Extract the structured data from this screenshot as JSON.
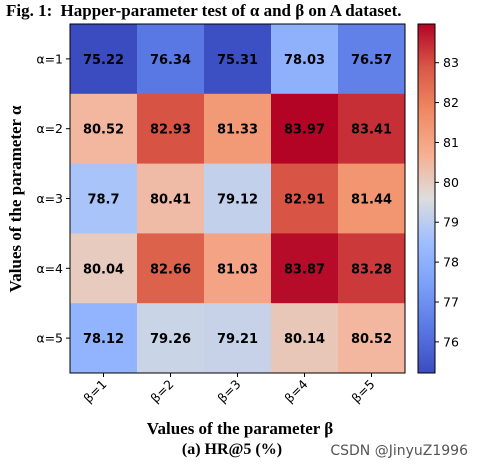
{
  "chart_data": {
    "type": "heatmap",
    "title_prefix": "Fig. 1:",
    "title": "Happer-parameter test of α and β on A dataset.",
    "xlabel": "Values of the parameter β",
    "ylabel": "Values of the parameter α",
    "x_categories": [
      "β=1",
      "β=2",
      "β=3",
      "β=4",
      "β=5"
    ],
    "y_categories": [
      "α=1",
      "α=2",
      "α=3",
      "α=4",
      "α=5"
    ],
    "values": [
      [
        75.22,
        76.34,
        75.31,
        78.03,
        76.57
      ],
      [
        80.52,
        82.93,
        81.33,
        83.97,
        83.41
      ],
      [
        78.7,
        80.41,
        79.12,
        82.91,
        81.44
      ],
      [
        80.04,
        82.66,
        81.03,
        83.87,
        83.28
      ],
      [
        78.12,
        79.26,
        79.21,
        80.14,
        80.52
      ]
    ],
    "value_labels": [
      [
        "75.22",
        "76.34",
        "75.31",
        "78.03",
        "76.57"
      ],
      [
        "80.52",
        "82.93",
        "81.33",
        "83.97",
        "83.41"
      ],
      [
        "78.7",
        "80.41",
        "79.12",
        "82.91",
        "81.44"
      ],
      [
        "80.04",
        "82.66",
        "81.03",
        "83.87",
        "83.28"
      ],
      [
        "78.12",
        "79.26",
        "79.21",
        "80.14",
        "80.52"
      ]
    ],
    "colormap": "coolwarm",
    "vmin": 75.22,
    "vmax": 83.97,
    "colorbar_ticks": [
      76,
      77,
      78,
      79,
      80,
      81,
      82,
      83
    ],
    "caption": "(a) HR@5 (%)"
  },
  "watermark": "CSDN @JinyuZ1996"
}
